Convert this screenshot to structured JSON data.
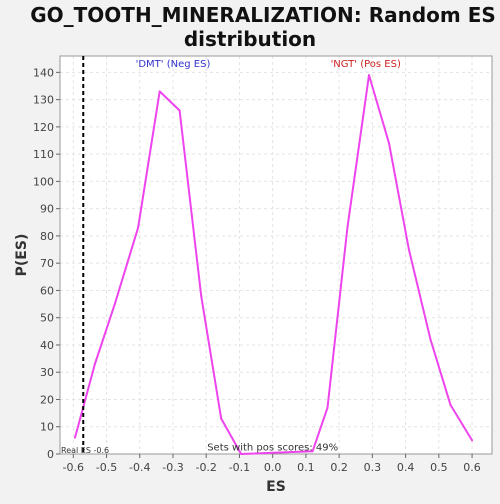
{
  "chart_data": {
    "type": "line",
    "title_line1": "GO_TOOTH_MINERALIZATION: Random ES",
    "title_line2": "distribution",
    "xlabel": "ES",
    "ylabel": "P(ES)",
    "xlim": [
      -0.64,
      0.66
    ],
    "ylim": [
      0,
      146
    ],
    "x_ticks": [
      -0.6,
      -0.5,
      -0.4,
      -0.3,
      -0.2,
      -0.1,
      0.0,
      0.1,
      0.2,
      0.3,
      0.4,
      0.5,
      0.6
    ],
    "x_tick_labels": [
      "-0.6",
      "-0.5",
      "-0.4",
      "-0.3",
      "-0.2",
      "-0.1",
      "0.0",
      "0.1",
      "0.2",
      "0.3",
      "0.4",
      "0.5",
      "0.6"
    ],
    "y_ticks": [
      0,
      10,
      20,
      30,
      40,
      50,
      60,
      70,
      80,
      90,
      100,
      110,
      120,
      130,
      140
    ],
    "y_tick_labels": [
      "0",
      "10",
      "20",
      "30",
      "40",
      "50",
      "60",
      "70",
      "80",
      "90",
      "100",
      "110",
      "120",
      "130",
      "140"
    ],
    "grid": true,
    "series": [
      {
        "color": "#ee44ee",
        "x": [
          -0.595,
          -0.535,
          -0.475,
          -0.405,
          -0.34,
          -0.28,
          -0.215,
          -0.155,
          -0.095,
          0.12,
          0.165,
          0.225,
          0.29,
          0.35,
          0.41,
          0.475,
          0.535,
          0.6
        ],
        "y": [
          6,
          33,
          55,
          83,
          133,
          126,
          58,
          13,
          0,
          1,
          17,
          83,
          139,
          114,
          75,
          42,
          18,
          5
        ]
      }
    ],
    "real_es": {
      "value": -0.57,
      "label": "Real ES -0.6",
      "color": "#000000"
    },
    "annotations": [
      {
        "text": "'DMT' (Neg ES)",
        "x": -0.3,
        "y": 142,
        "color": "#3333cc"
      },
      {
        "text": "'NGT' (Pos ES)",
        "x": 0.28,
        "y": 142,
        "color": "#cc2222"
      },
      {
        "text": "Sets with pos scores: 49%",
        "x": 0.0,
        "y": 1.2,
        "color": "#333333"
      }
    ]
  }
}
